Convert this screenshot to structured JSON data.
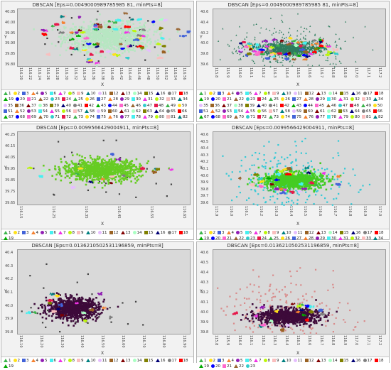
{
  "panels": [
    {
      "title": "DBSCAN [Eps=0.0049000989785985 81, minPts=8]",
      "xlabel": "X",
      "ylabel": "Y",
      "yticks": [
        "40.05",
        "40.00",
        "39.95",
        "39.90",
        "39.85",
        "39.80"
      ],
      "xticks": [
        "116.20",
        "116.22",
        "116.24",
        "116.26",
        "116.28",
        "116.30",
        "116.32",
        "116.34",
        "116.36",
        "116.38",
        "116.40",
        "116.42",
        "116.44",
        "116.46",
        "116.48",
        "116.50",
        "116.52",
        "116.54",
        "116.56"
      ],
      "legend_count": 82
    },
    {
      "title": "DBSCAN [Eps=0.0049000989785985 81, minPts=8]",
      "xlabel": "X",
      "ylabel": "Y",
      "yticks": [
        "40.6",
        "40.4",
        "40.2",
        "40.0",
        "39.8",
        "39.6"
      ],
      "xticks": [
        "115.8",
        "115.9",
        "116.0",
        "116.1",
        "116.2",
        "116.3",
        "116.4",
        "116.5",
        "116.6",
        "116.7",
        "116.8",
        "116.9",
        "117.0",
        "117.1",
        "117.2"
      ],
      "legend_count": 82
    },
    {
      "title": "DBSCAN [Eps=0.0099566429004911, minPts=8]",
      "xlabel": "X",
      "ylabel": "Y",
      "yticks": [
        "40.25",
        "40.15",
        "40.05",
        "39.95",
        "39.85",
        "39.75",
        "39.65"
      ],
      "xticks": [
        "116.15",
        "116.25",
        "116.35",
        "116.45",
        "116.55",
        "116.65"
      ],
      "legend_count": 19
    },
    {
      "title": "DBSCAN [Eps=0.0099566429004911, minPts=8]",
      "xlabel": "X",
      "ylabel": "Y",
      "yticks": [
        "40.6",
        "40.5",
        "40.4",
        "40.3",
        "40.2",
        "40.1",
        "40.0",
        "39.9",
        "39.8",
        "39.7",
        "39.6"
      ],
      "xticks": [
        "115.9",
        "116.0",
        "116.1",
        "116.2",
        "116.3",
        "116.4",
        "116.5",
        "116.6",
        "116.7",
        "116.8",
        "116.9",
        "117.0"
      ],
      "legend_count": 34
    },
    {
      "title": "DBSCAN [Eps=0.0136210502531196859, minPts=8]",
      "xlabel": "X",
      "ylabel": "Y",
      "yticks": [
        "40.4",
        "40.3",
        "40.2",
        "40.1",
        "40.0",
        "39.9",
        "39.8"
      ],
      "xticks": [
        "116.10",
        "116.20",
        "116.30",
        "116.40",
        "116.50",
        "116.60",
        "116.70",
        "116.80",
        "116.90"
      ],
      "legend_count": 19
    },
    {
      "title": "DBSCAN [Eps=0.0136210502531196859, minPts=8]",
      "xlabel": "X",
      "ylabel": "Y",
      "yticks": [
        "40.6",
        "40.5",
        "40.4",
        "40.3",
        "40.2",
        "40.1",
        "40.0",
        "39.9",
        "39.8"
      ],
      "xticks": [
        "115.8",
        "115.9",
        "116.0",
        "116.1",
        "116.2",
        "116.3",
        "116.4",
        "116.5",
        "116.6",
        "116.7",
        "116.8",
        "116.9",
        "117.0",
        "117.1",
        "117.2"
      ],
      "legend_count": 23
    }
  ],
  "chart_data": [
    {
      "type": "scatter",
      "title": "DBSCAN [Eps=0.0049000989785985 81, minPts=8]",
      "xlabel": "X",
      "ylabel": "Y",
      "xlim": [
        116.2,
        116.56
      ],
      "ylim": [
        39.78,
        40.07
      ],
      "dominant_cluster": {
        "cx": 116.39,
        "cy": 39.93,
        "sx": 0.045,
        "sy": 0.035,
        "color": "#b7e6c2",
        "marker": "square"
      },
      "small_clusters": 81,
      "noise_color": "#3a3a3a"
    },
    {
      "type": "scatter",
      "title": "DBSCAN [Eps=0.0049000989785985 81, minPts=8]",
      "xlabel": "X",
      "ylabel": "Y",
      "xlim": [
        115.8,
        117.2
      ],
      "ylim": [
        39.55,
        40.7
      ],
      "dominant_cluster": {
        "cx": 116.4,
        "cy": 39.92,
        "sx": 0.12,
        "sy": 0.06,
        "color": "#2e7d5e",
        "marker": "triangle"
      },
      "small_clusters": 81,
      "noise_color": "#2e7d5e"
    },
    {
      "type": "scatter",
      "title": "DBSCAN [Eps=0.0099566429004911, minPts=8]",
      "xlabel": "X",
      "ylabel": "Y",
      "xlim": [
        116.15,
        116.65
      ],
      "ylim": [
        39.63,
        40.27
      ],
      "dominant_cluster": {
        "cx": 116.39,
        "cy": 39.94,
        "sx": 0.055,
        "sy": 0.045,
        "color": "#66cc22",
        "marker": "square"
      },
      "small_clusters": 18,
      "noise_color": "#444444"
    },
    {
      "type": "scatter",
      "title": "DBSCAN [Eps=0.0099566429004911, minPts=8]",
      "xlabel": "X",
      "ylabel": "Y",
      "xlim": [
        115.85,
        117.05
      ],
      "ylim": [
        39.55,
        40.65
      ],
      "dominant_cluster": {
        "cx": 116.4,
        "cy": 39.93,
        "sx": 0.1,
        "sy": 0.06,
        "color": "#44cc22",
        "marker": "square"
      },
      "small_clusters": 33,
      "noise_color": "#33c9d6"
    },
    {
      "type": "scatter",
      "title": "DBSCAN [Eps=0.0136210502531196859, minPts=8]",
      "xlabel": "X",
      "ylabel": "Y",
      "xlim": [
        116.1,
        116.92
      ],
      "ylim": [
        39.75,
        40.42
      ],
      "dominant_cluster": {
        "cx": 116.36,
        "cy": 39.96,
        "sx": 0.06,
        "sy": 0.04,
        "color": "#3d0a3a",
        "marker": "square"
      },
      "small_clusters": 18,
      "noise_color": "#444444"
    },
    {
      "type": "scatter",
      "title": "DBSCAN [Eps=0.0136210502531196859, minPts=8]",
      "xlabel": "X",
      "ylabel": "Y",
      "xlim": [
        115.8,
        117.2
      ],
      "ylim": [
        39.75,
        40.65
      ],
      "dominant_cluster": {
        "cx": 116.4,
        "cy": 39.95,
        "sx": 0.12,
        "sy": 0.04,
        "color": "#3d0a3a",
        "marker": "square"
      },
      "small_clusters": 22,
      "noise_color": "#d98c8c"
    }
  ],
  "palette": [
    "#e6194b",
    "#3cb44b",
    "#ffe119",
    "#4363d8",
    "#f58231",
    "#911eb4",
    "#46f0f0",
    "#f032e6",
    "#bcf60c",
    "#fabebe",
    "#008080",
    "#e6beff",
    "#9a6324",
    "#800000",
    "#aaffc3",
    "#808000",
    "#000075",
    "#808080",
    "#ff0000",
    "#00aa00",
    "#0000ff",
    "#ff66cc",
    "#996633",
    "#33cccc"
  ]
}
